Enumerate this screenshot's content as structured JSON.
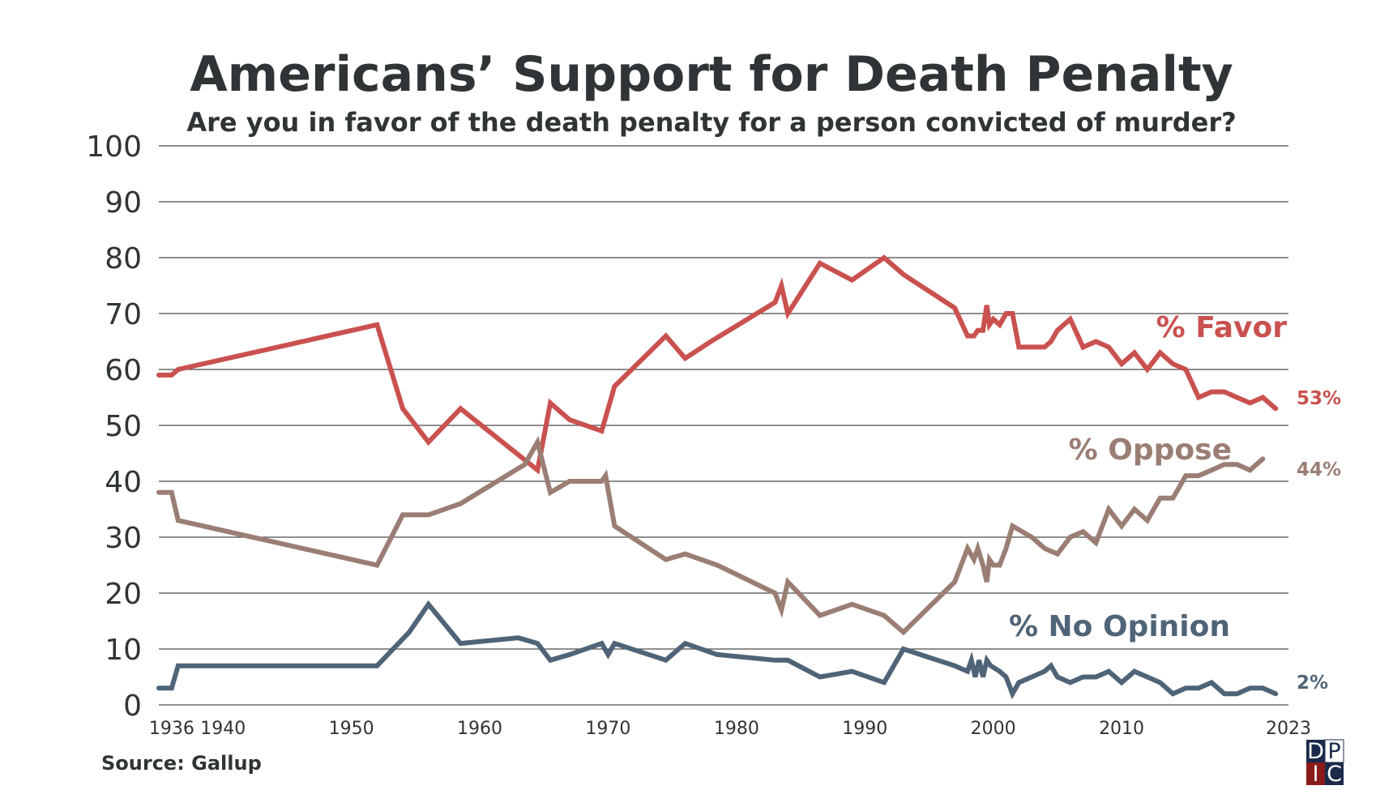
{
  "chart_data": {
    "type": "line",
    "title": "Americans’ Support for Death Penalty",
    "subtitle": "Are you in favor of the death penalty for a person convicted of murder?",
    "source": "Source: Gallup",
    "xlabel": "",
    "ylabel": "",
    "xlim": [
      1935,
      2023
    ],
    "ylim": [
      0,
      100
    ],
    "y_ticks": [
      "0",
      "10",
      "20",
      "30",
      "40",
      "50",
      "60",
      "70",
      "80",
      "90",
      "100"
    ],
    "x_ticks": [
      {
        "value": 1936,
        "label": "1936"
      },
      {
        "value": 1940,
        "label": "1940"
      },
      {
        "value": 1950,
        "label": "1950"
      },
      {
        "value": 1960,
        "label": "1960"
      },
      {
        "value": 1970,
        "label": "1970"
      },
      {
        "value": 1980,
        "label": "1980"
      },
      {
        "value": 1990,
        "label": "1990"
      },
      {
        "value": 2000,
        "label": "2000"
      },
      {
        "value": 2010,
        "label": "2010"
      },
      {
        "value": 2023,
        "label": "2023"
      }
    ],
    "grid": true,
    "series": [
      {
        "name": "% Favor",
        "color": "#c9514f",
        "end_label": "53%",
        "points": [
          [
            1935,
            59
          ],
          [
            1936,
            59
          ],
          [
            1936.5,
            60
          ],
          [
            1952,
            68
          ],
          [
            1954,
            53
          ],
          [
            1956,
            47
          ],
          [
            1958.5,
            53
          ],
          [
            1964.5,
            42
          ],
          [
            1965.5,
            54
          ],
          [
            1967,
            51
          ],
          [
            1969.5,
            49
          ],
          [
            1970.5,
            57
          ],
          [
            1974.5,
            66
          ],
          [
            1976,
            62
          ],
          [
            1978,
            65
          ],
          [
            1983,
            72
          ],
          [
            1983.5,
            75
          ],
          [
            1984,
            70
          ],
          [
            1986.5,
            79
          ],
          [
            1989,
            76
          ],
          [
            1991.5,
            80
          ],
          [
            1993,
            77
          ],
          [
            1997,
            71
          ],
          [
            1998,
            66
          ],
          [
            1998.5,
            66
          ],
          [
            1998.8,
            67
          ],
          [
            1999.2,
            67
          ],
          [
            1999.5,
            71.5
          ],
          [
            1999.7,
            68
          ],
          [
            2000,
            69
          ],
          [
            2000.5,
            68
          ],
          [
            2001,
            70
          ],
          [
            2001.5,
            70
          ],
          [
            2002,
            64
          ],
          [
            2004,
            64
          ],
          [
            2004.5,
            65
          ],
          [
            2005,
            67
          ],
          [
            2006,
            69
          ],
          [
            2007,
            64
          ],
          [
            2008,
            65
          ],
          [
            2009,
            64
          ],
          [
            2010,
            61
          ],
          [
            2011,
            63
          ],
          [
            2012,
            60
          ],
          [
            2013,
            63
          ],
          [
            2014,
            61
          ],
          [
            2015,
            60
          ],
          [
            2016,
            55
          ],
          [
            2017,
            56
          ],
          [
            2018,
            56
          ],
          [
            2019,
            55
          ],
          [
            2020,
            54
          ],
          [
            2021,
            55
          ],
          [
            2022,
            53
          ]
        ]
      },
      {
        "name": "% Oppose",
        "color": "#9a7e74",
        "end_label": "44%",
        "points": [
          [
            1935,
            38
          ],
          [
            1936,
            38
          ],
          [
            1936.5,
            33
          ],
          [
            1952,
            25
          ],
          [
            1954,
            34
          ],
          [
            1956,
            34
          ],
          [
            1958.5,
            36
          ],
          [
            1963.5,
            43
          ],
          [
            1964.5,
            47
          ],
          [
            1965.5,
            38
          ],
          [
            1967,
            40
          ],
          [
            1969.5,
            40
          ],
          [
            1969.8,
            41
          ],
          [
            1970.5,
            32
          ],
          [
            1974.5,
            26
          ],
          [
            1976,
            27
          ],
          [
            1978.5,
            25
          ],
          [
            1983,
            20
          ],
          [
            1983.5,
            17
          ],
          [
            1984,
            22
          ],
          [
            1986.5,
            16
          ],
          [
            1989,
            18
          ],
          [
            1991.5,
            16
          ],
          [
            1993,
            13
          ],
          [
            1997,
            22
          ],
          [
            1998,
            28
          ],
          [
            1998.5,
            26
          ],
          [
            1998.8,
            28
          ],
          [
            1999.2,
            25
          ],
          [
            1999.5,
            22
          ],
          [
            1999.7,
            26
          ],
          [
            2000,
            25
          ],
          [
            2000.5,
            25
          ],
          [
            2001,
            28
          ],
          [
            2001.5,
            32
          ],
          [
            2003,
            30
          ],
          [
            2004,
            28
          ],
          [
            2005,
            27
          ],
          [
            2006,
            30
          ],
          [
            2007,
            31
          ],
          [
            2008,
            29
          ],
          [
            2009,
            35
          ],
          [
            2010,
            32
          ],
          [
            2011,
            35
          ],
          [
            2012,
            33
          ],
          [
            2013,
            37
          ],
          [
            2014,
            37
          ],
          [
            2015,
            41
          ],
          [
            2016,
            41
          ],
          [
            2017,
            42
          ],
          [
            2018,
            43
          ],
          [
            2019,
            43
          ],
          [
            2020,
            42
          ],
          [
            2021,
            44
          ]
        ]
      },
      {
        "name": "% No Opinion",
        "color": "#4f6477",
        "end_label": "2%",
        "points": [
          [
            1935,
            3
          ],
          [
            1936,
            3
          ],
          [
            1936.5,
            7
          ],
          [
            1952,
            7
          ],
          [
            1954.5,
            13
          ],
          [
            1956,
            18
          ],
          [
            1958.5,
            11
          ],
          [
            1963,
            12
          ],
          [
            1964.5,
            11
          ],
          [
            1965.5,
            8
          ],
          [
            1967,
            9
          ],
          [
            1969.5,
            11
          ],
          [
            1970,
            9
          ],
          [
            1970.5,
            11
          ],
          [
            1974.5,
            8
          ],
          [
            1976,
            11
          ],
          [
            1978.5,
            9
          ],
          [
            1983,
            8
          ],
          [
            1984,
            8
          ],
          [
            1986.5,
            5
          ],
          [
            1989,
            6
          ],
          [
            1991.5,
            4
          ],
          [
            1993,
            10
          ],
          [
            1997,
            7
          ],
          [
            1998,
            6
          ],
          [
            1998.3,
            8
          ],
          [
            1998.6,
            5
          ],
          [
            1998.9,
            8
          ],
          [
            1999.2,
            5
          ],
          [
            1999.5,
            8
          ],
          [
            1999.8,
            7
          ],
          [
            2000.5,
            6
          ],
          [
            2001,
            5
          ],
          [
            2001.5,
            2
          ],
          [
            2002,
            4
          ],
          [
            2004,
            6
          ],
          [
            2004.5,
            7
          ],
          [
            2005,
            5
          ],
          [
            2006,
            4
          ],
          [
            2007,
            5
          ],
          [
            2008,
            5
          ],
          [
            2009,
            6
          ],
          [
            2010,
            4
          ],
          [
            2011,
            6
          ],
          [
            2012,
            5
          ],
          [
            2013,
            4
          ],
          [
            2014,
            2
          ],
          [
            2015,
            3
          ],
          [
            2016,
            3
          ],
          [
            2017,
            4
          ],
          [
            2018,
            2
          ],
          [
            2019,
            2
          ],
          [
            2020,
            3
          ],
          [
            2021,
            3
          ],
          [
            2022,
            2
          ]
        ]
      }
    ]
  },
  "logo": {
    "letters": [
      "D",
      "P",
      "I",
      "C"
    ],
    "colors": [
      "#1b2a4a",
      "#ffffff",
      "#8b1a1a",
      "#1b2a4a"
    ]
  }
}
